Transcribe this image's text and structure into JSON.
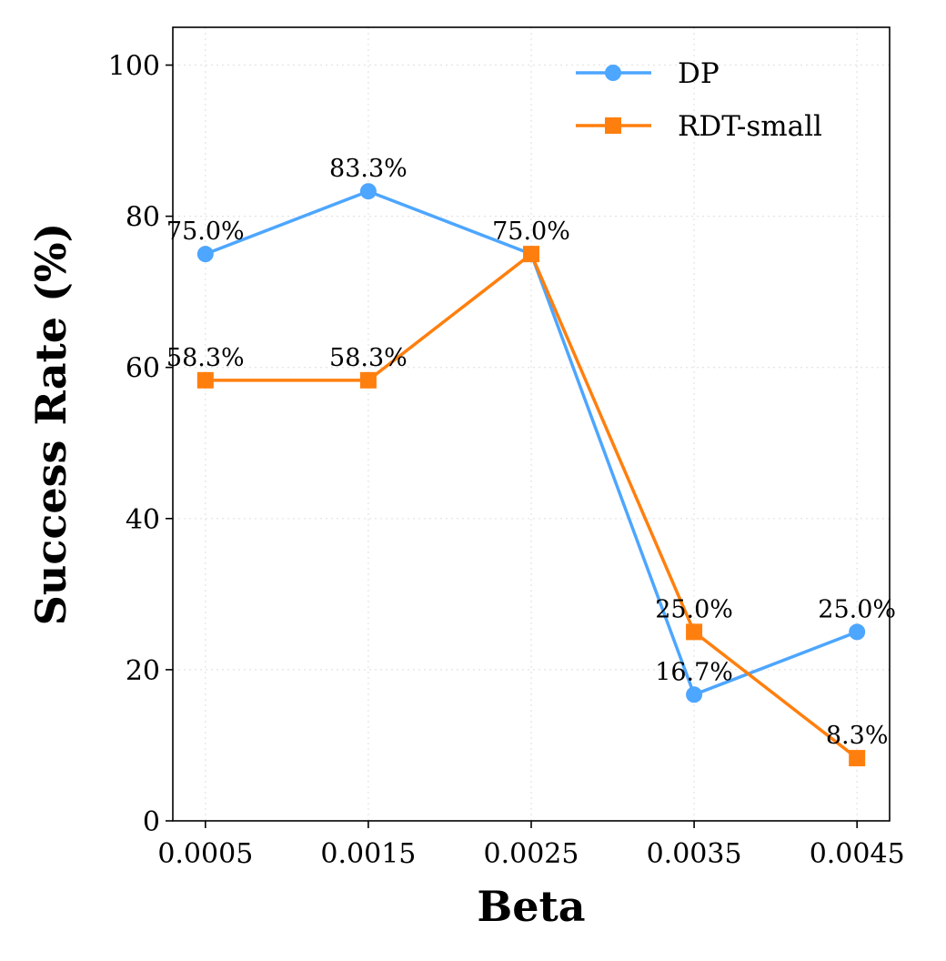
{
  "chart_data": {
    "type": "line",
    "title": "",
    "xlabel": "Beta",
    "ylabel": "Success Rate (%)",
    "x": [
      0.0005,
      0.0015,
      0.0025,
      0.0035,
      0.0045
    ],
    "x_tick_labels": [
      "0.0005",
      "0.0015",
      "0.0025",
      "0.0035",
      "0.0045"
    ],
    "y_ticks": [
      0,
      20,
      40,
      60,
      80,
      100
    ],
    "y_tick_labels": [
      "0",
      "20",
      "40",
      "60",
      "80",
      "100"
    ],
    "xlim": [
      0.0003,
      0.0047
    ],
    "ylim": [
      0,
      105
    ],
    "grid": true,
    "legend_position": "top-right",
    "series": [
      {
        "name": "DP",
        "color": "#4da6ff",
        "marker": "circle",
        "values": [
          75.0,
          83.3,
          75.0,
          16.7,
          25.0
        ],
        "labels": [
          "75.0%",
          "83.3%",
          "75.0%",
          "16.7%",
          "25.0%"
        ]
      },
      {
        "name": "RDT-small",
        "color": "#ff7f0e",
        "marker": "square",
        "values": [
          58.3,
          58.3,
          75.0,
          25.0,
          8.3
        ],
        "labels": [
          "58.3%",
          "58.3%",
          "",
          "25.0%",
          "8.3%"
        ]
      }
    ]
  }
}
